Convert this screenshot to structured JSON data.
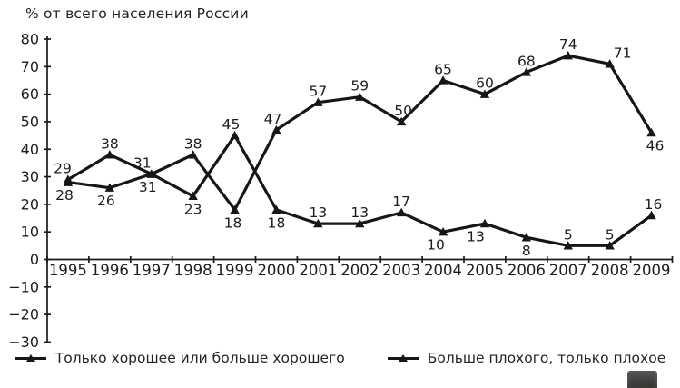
{
  "figure": {
    "title": "% от всего населения России"
  },
  "chart_data": {
    "type": "line",
    "title": "% от всего населения России",
    "categories": [
      "1995",
      "1996",
      "1997",
      "1998",
      "1999",
      "2000",
      "2001",
      "2002",
      "2003",
      "2004",
      "2005",
      "2006",
      "2007",
      "2008",
      "2009"
    ],
    "xlabel": "",
    "ylabel": "% от всего населения России",
    "ylim": [
      -30,
      80
    ],
    "yticks": [
      80,
      70,
      60,
      50,
      40,
      30,
      20,
      10,
      0,
      -10,
      -20,
      -30
    ],
    "grid": false,
    "legend_position": "bottom",
    "line_color": "#161616",
    "marker": "triangle",
    "series": [
      {
        "name": "Только хорошее или больше хорошего",
        "values": [
          28,
          26,
          31,
          38,
          18,
          47,
          57,
          59,
          50,
          65,
          60,
          68,
          74,
          71,
          46
        ],
        "color": "#161616",
        "label_sides": [
          "below",
          "below",
          "below",
          "above",
          "below",
          "above",
          "above",
          "above",
          "above",
          "above",
          "above",
          "above",
          "above",
          "above",
          "below"
        ],
        "label_dx": [
          -4,
          -4,
          -4,
          0,
          -2,
          -4,
          0,
          0,
          2,
          0,
          0,
          0,
          0,
          14,
          4
        ]
      },
      {
        "name": "Больше плохого, только плохое",
        "values": [
          29,
          38,
          31,
          23,
          45,
          18,
          13,
          13,
          17,
          10,
          13,
          8,
          5,
          5,
          16
        ],
        "color": "#161616",
        "label_sides": [
          "above",
          "above",
          "above",
          "below",
          "above",
          "below",
          "above",
          "above",
          "above",
          "below",
          "below",
          "below",
          "above",
          "above",
          "above"
        ],
        "label_dx": [
          -6,
          0,
          -10,
          0,
          -4,
          0,
          0,
          0,
          0,
          -8,
          -10,
          0,
          0,
          0,
          2
        ]
      }
    ]
  }
}
